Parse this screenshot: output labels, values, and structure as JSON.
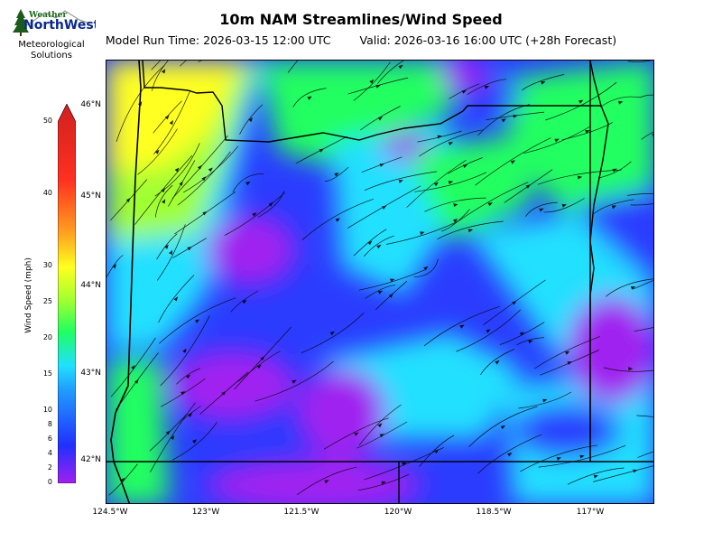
{
  "header": {
    "title": "10m NAM Streamlines/Wind Speed",
    "model_run": "Model Run Time: 2026-03-15 12:00 UTC",
    "valid": "Valid: 2026-03-16 16:00 UTC  (+28h Forecast)"
  },
  "logo": {
    "top_word": "Weather",
    "brand": "NorthWest",
    "caption_line1": "Meteorological",
    "caption_line2": "Solutions"
  },
  "map": {
    "lat_labels": [
      "46°N",
      "45°N",
      "44°N",
      "43°N",
      "42°N"
    ],
    "lon_labels": [
      "124.5°W",
      "123°W",
      "121.5°W",
      "120°W",
      "118.5°W",
      "117°W"
    ],
    "background_color": "#2b3cff"
  },
  "colorbar": {
    "label": "Wind Speed (mph)",
    "ticks": [
      "50",
      "40",
      "30",
      "25",
      "20",
      "15",
      "10",
      "8",
      "6",
      "4",
      "2",
      "0"
    ],
    "stops": [
      "#a020f0",
      "#2030ff",
      "#20a0ff",
      "#20e0ff",
      "#20ff60",
      "#a0ff30",
      "#ffff20",
      "#ffa020",
      "#ff3020",
      "#d02020"
    ]
  }
}
